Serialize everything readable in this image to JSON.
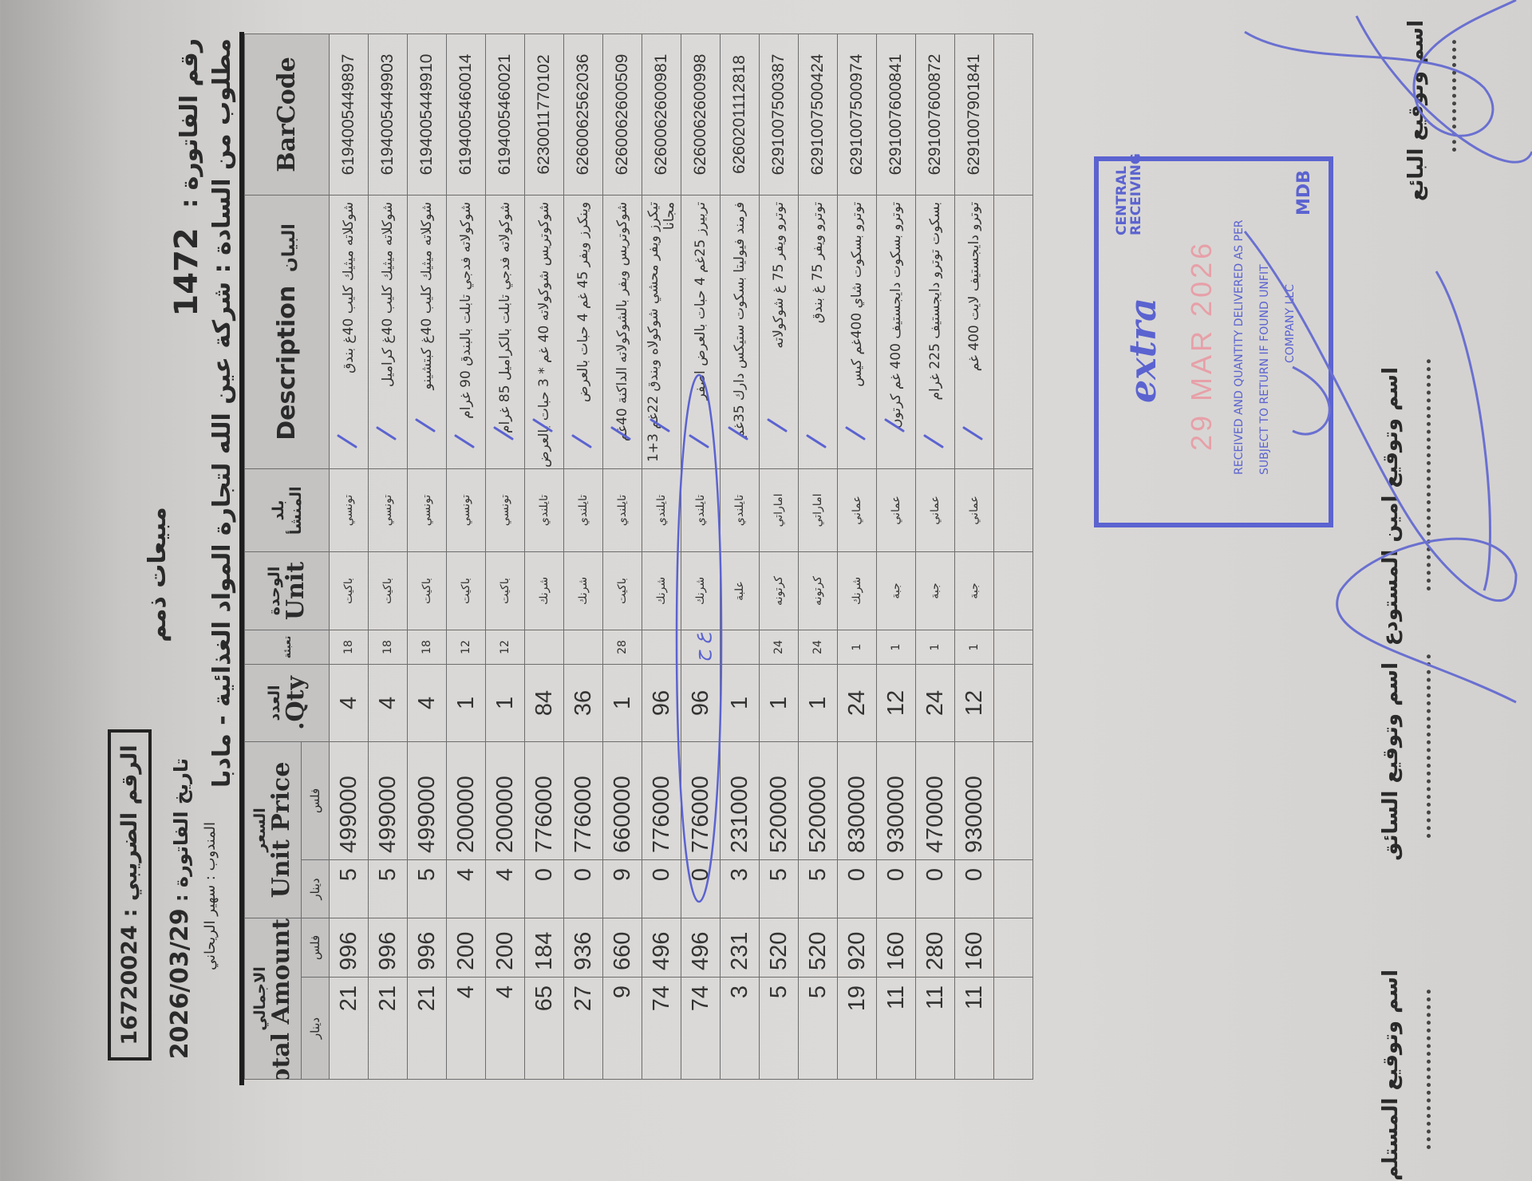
{
  "header": {
    "title": "مبيعات ذمم",
    "tax_label": "الرقم الضريبي :",
    "tax_number": "16720024",
    "invoice_label": "رقم الفاتورة :",
    "invoice_number": "1472",
    "customer_label": "مطلوب من السادة :",
    "customer": "شركة عين الله لتجارة المواد الغذائية - مادبا",
    "date_label": "تاريخ الفاتورة :",
    "date": "2026/03/29",
    "rep_label": "المندوب :",
    "rep": "سهير الريحاني"
  },
  "columns": {
    "barcode": "BarCode",
    "desc_ar": "البيان",
    "desc_en": "Description",
    "origin": "بلد المنشأ",
    "unit_ar": "الوحدة",
    "unit_en": "Unit",
    "pack": "تعبئة",
    "qty_ar": "العدد",
    "qty_en": "Qty.",
    "price_ar": "السعر",
    "price_en": "Unit Price",
    "total_ar": "الاجمالي",
    "total_en": "Total Amount",
    "dinar": "دينار",
    "fils": "فلس"
  },
  "rows": [
    {
      "barcode": "6194005449897",
      "desc": "شوكلاته ميثيك كليب 40غ بندق",
      "origin": "تونسي",
      "unit": "باكيت",
      "pack": "18",
      "qty": "4",
      "price_dinar": "5",
      "price_fils": "499000",
      "total_dinar": "21",
      "total_fils": "996"
    },
    {
      "barcode": "6194005449903",
      "desc": "شوكلاته ميثيك كليب 40غ كراميل",
      "origin": "تونسي",
      "unit": "باكيت",
      "pack": "18",
      "qty": "4",
      "price_dinar": "5",
      "price_fils": "499000",
      "total_dinar": "21",
      "total_fils": "996"
    },
    {
      "barcode": "6194005449910",
      "desc": "شوكلاته ميثيك كليب 40غ كبتشينو",
      "origin": "تونسي",
      "unit": "باكيت",
      "pack": "18",
      "qty": "4",
      "price_dinar": "5",
      "price_fils": "499000",
      "total_dinar": "21",
      "total_fils": "996"
    },
    {
      "barcode": "6194005460014",
      "desc": "شوكولاته فدجي تابلت بالبندق 90 غرام",
      "origin": "تونسي",
      "unit": "باكيت",
      "pack": "12",
      "qty": "1",
      "price_dinar": "4",
      "price_fils": "200000",
      "total_dinar": "4",
      "total_fils": "200"
    },
    {
      "barcode": "6194005460021",
      "desc": "شوكولاته فدجي تابلت بالكراميل 85 غرام",
      "origin": "تونسي",
      "unit": "باكيت",
      "pack": "12",
      "qty": "1",
      "price_dinar": "4",
      "price_fils": "200000",
      "total_dinar": "4",
      "total_fils": "200"
    },
    {
      "barcode": "6230011770102",
      "desc": "شوكوتريس شوكولاته 40 غم * 3 حبات بالعرض",
      "origin": "تايلندي",
      "unit": "شرنك",
      "pack": "",
      "qty": "84",
      "price_dinar": "0",
      "price_fils": "776000",
      "total_dinar": "65",
      "total_fils": "184"
    },
    {
      "barcode": "6260062562036",
      "desc": "وينكرز ويفر 45 غم 4 حبات بالعرض",
      "origin": "تايلندي",
      "unit": "شرنك",
      "pack": "",
      "qty": "36",
      "price_dinar": "0",
      "price_fils": "776000",
      "total_dinar": "27",
      "total_fils": "936"
    },
    {
      "barcode": "6260062600509",
      "desc": "شوكوتريس ويفر بالشوكولاته الداكنة 40غم",
      "origin": "تايلندي",
      "unit": "باكيت",
      "pack": "28",
      "qty": "1",
      "price_dinar": "9",
      "price_fils": "660000",
      "total_dinar": "9",
      "total_fils": "660"
    },
    {
      "barcode": "6260062600981",
      "desc": "تيكرز ويفر محشي شوكولاه وبندق 22غم 3+1 مجانا",
      "origin": "تايلندي",
      "unit": "شرنك",
      "pack": "",
      "qty": "96",
      "price_dinar": "0",
      "price_fils": "776000",
      "total_dinar": "74",
      "total_fils": "496"
    },
    {
      "barcode": "6260062600998",
      "desc": "تربيرز 25غم 4 حبات بالعرض اصفر",
      "origin": "تايلندي",
      "unit": "شرنك",
      "pack": "",
      "qty": "96",
      "price_dinar": "0",
      "price_fils": "776000",
      "total_dinar": "74",
      "total_fils": "496"
    },
    {
      "barcode": "6260201112818",
      "desc": "فرمند فيوليتا بسكوت ستيكس دارك 35غم",
      "origin": "تايلندي",
      "unit": "علبة",
      "pack": "",
      "qty": "1",
      "price_dinar": "3",
      "price_fils": "231000",
      "total_dinar": "3",
      "total_fils": "231"
    },
    {
      "barcode": "6291007500387",
      "desc": "توترو ويفر 75 غ شوكولاته",
      "origin": "اماراتي",
      "unit": "كرتونه",
      "pack": "24",
      "qty": "1",
      "price_dinar": "5",
      "price_fils": "520000",
      "total_dinar": "5",
      "total_fils": "520"
    },
    {
      "barcode": "6291007500424",
      "desc": "توترو ويفر 75 غ بندق",
      "origin": "اماراتي",
      "unit": "كرتونه",
      "pack": "24",
      "qty": "1",
      "price_dinar": "5",
      "price_fils": "520000",
      "total_dinar": "5",
      "total_fils": "520"
    },
    {
      "barcode": "6291007500974",
      "desc": "توترو بسكوت شاي 400غم كيس",
      "origin": "عماني",
      "unit": "شرنك",
      "pack": "1",
      "qty": "24",
      "price_dinar": "0",
      "price_fils": "830000",
      "total_dinar": "19",
      "total_fils": "920"
    },
    {
      "barcode": "6291007600841",
      "desc": "توترو بسكوت دايجستيف 400 غم كرتون",
      "origin": "عماني",
      "unit": "جبة",
      "pack": "1",
      "qty": "12",
      "price_dinar": "0",
      "price_fils": "930000",
      "total_dinar": "11",
      "total_fils": "160"
    },
    {
      "barcode": "6291007600872",
      "desc": "بسكوت توترو دايجستيف 225 غرام",
      "origin": "عماني",
      "unit": "جبة",
      "pack": "1",
      "qty": "24",
      "price_dinar": "0",
      "price_fils": "470000",
      "total_dinar": "11",
      "total_fils": "280"
    },
    {
      "barcode": "6291007901841",
      "desc": "توترو دايجستيف لايت 400 غم",
      "origin": "عماني",
      "unit": "جبة",
      "pack": "1",
      "qty": "12",
      "price_dinar": "0",
      "price_fils": "930000",
      "total_dinar": "11",
      "total_fils": "160"
    }
  ],
  "handwritten_note": "ع ح",
  "stamp": {
    "brand": "extra",
    "date": "29 MAR 2026",
    "dept": "CENTRAL RECEIVING",
    "line1": "RECEIVED AND QUANTITY DELIVERED AS PER",
    "line2": "SUBJECT TO RETURN IF FOUND UNFIT",
    "line3": "COMPANY LLC",
    "code": "MDB"
  },
  "signatures": {
    "seller": "اسم وتوقيع البائع",
    "warehouse": "اسم وتوقيع امين المستودع",
    "driver": "اسم وتوقيع السائق",
    "receiver": "اسم وتوقيع المستلم"
  },
  "colors": {
    "ink_blue": "#5b63d0",
    "stamp_red": "#e7a0a8",
    "paper": "#dcdad8"
  }
}
